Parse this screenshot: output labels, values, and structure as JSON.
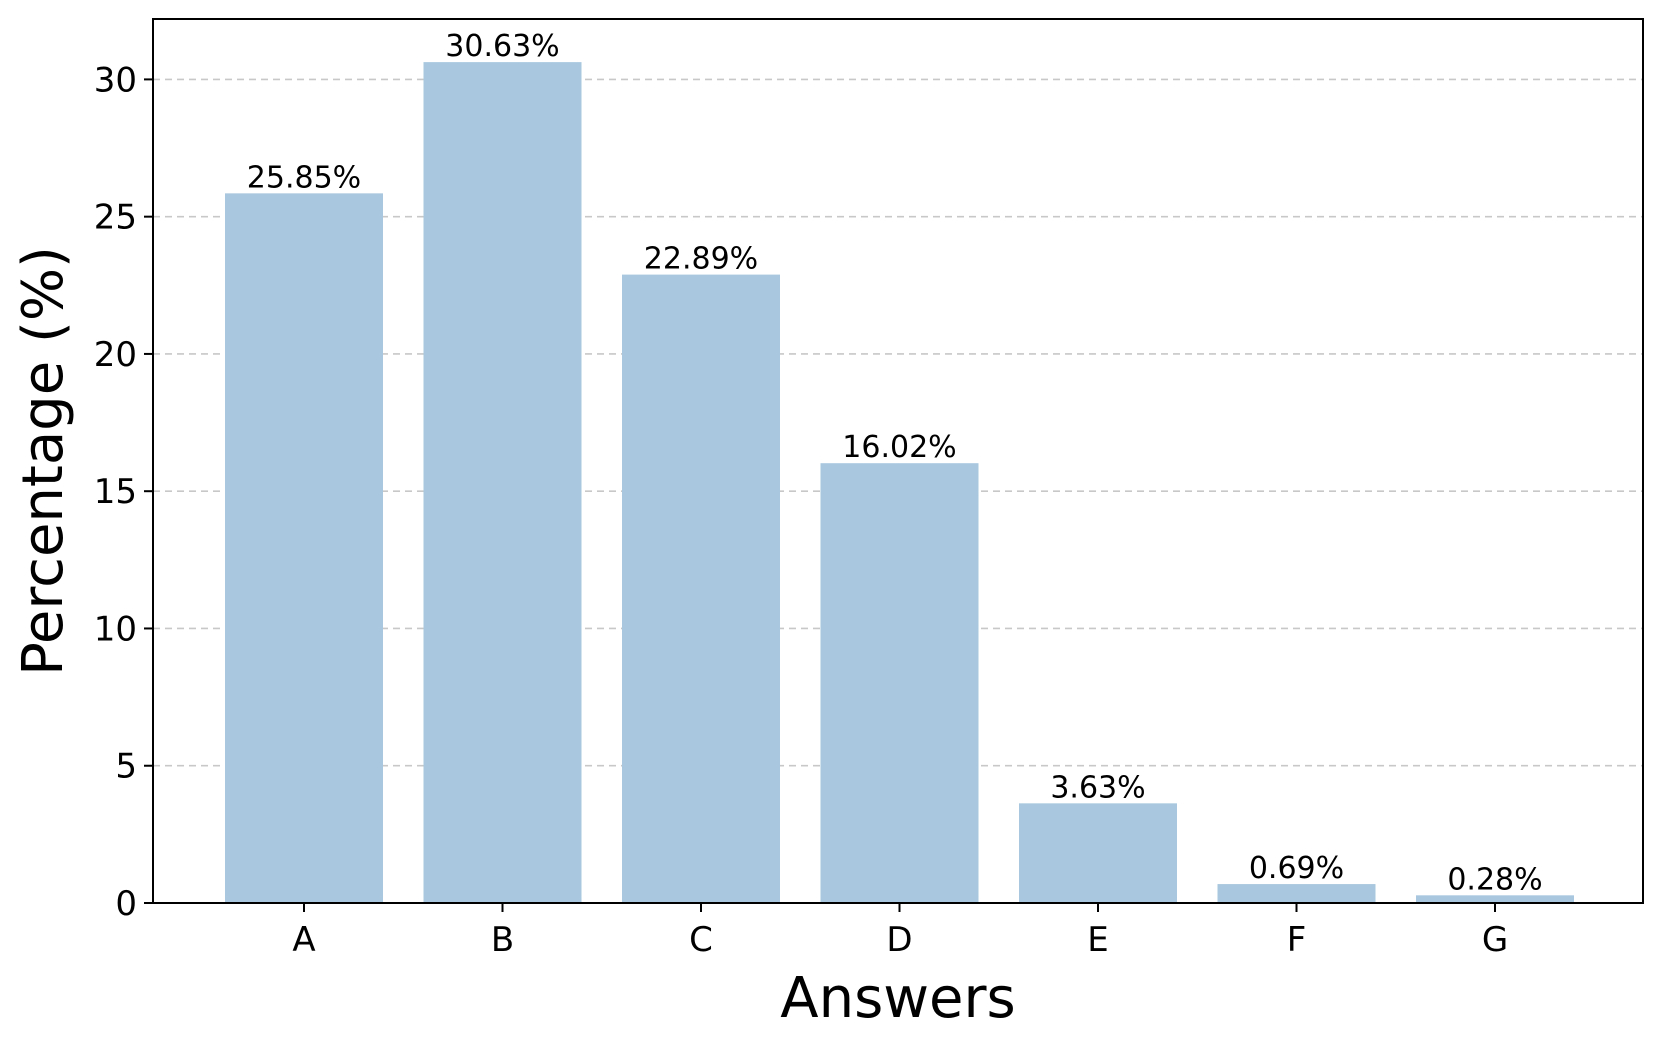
{
  "chart_data": {
    "type": "bar",
    "categories": [
      "A",
      "B",
      "C",
      "D",
      "E",
      "F",
      "G"
    ],
    "values": [
      25.85,
      30.63,
      22.89,
      16.02,
      3.63,
      0.69,
      0.28
    ],
    "data_labels": [
      "25.85%",
      "30.63%",
      "22.89%",
      "16.02%",
      "3.63%",
      "0.69%",
      "0.28%"
    ],
    "title": "",
    "xlabel": "Answers",
    "ylabel": "Percentage (%)",
    "ylim": [
      0,
      32.2
    ],
    "yticks": [
      0,
      5,
      10,
      15,
      20,
      25,
      30
    ],
    "grid": "horizontal dashed",
    "colors": {
      "bar": "#a9c8df",
      "grid": "#c8c8c8",
      "axis": "#000000"
    }
  }
}
